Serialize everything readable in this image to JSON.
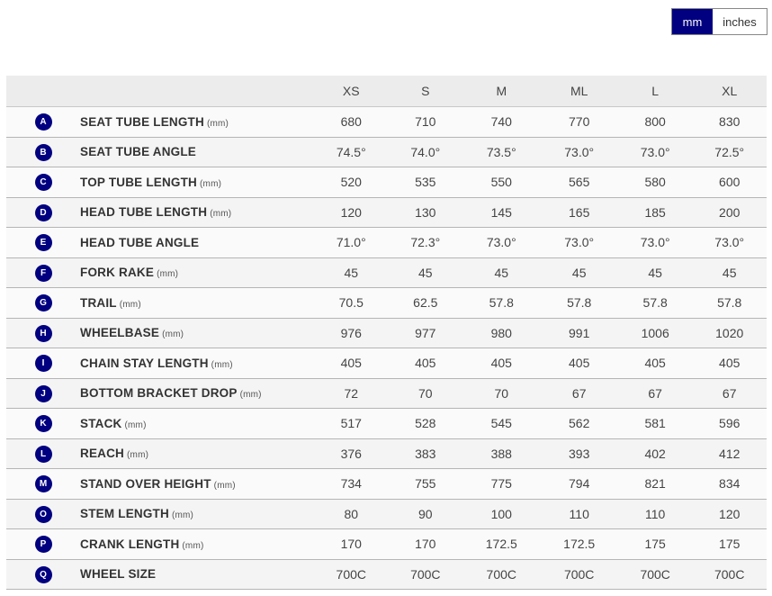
{
  "units_toggle": {
    "mm": "mm",
    "inches": "inches",
    "selected": "mm"
  },
  "accent_color": "#000080",
  "sizes": [
    "XS",
    "S",
    "M",
    "ML",
    "L",
    "XL"
  ],
  "rows": [
    {
      "letter": "A",
      "label": "SEAT TUBE LENGTH",
      "unit": "(mm)",
      "values": [
        "680",
        "710",
        "740",
        "770",
        "800",
        "830"
      ]
    },
    {
      "letter": "B",
      "label": "SEAT TUBE ANGLE",
      "unit": "",
      "values": [
        "74.5°",
        "74.0°",
        "73.5°",
        "73.0°",
        "73.0°",
        "72.5°"
      ]
    },
    {
      "letter": "C",
      "label": "TOP TUBE LENGTH",
      "unit": "(mm)",
      "values": [
        "520",
        "535",
        "550",
        "565",
        "580",
        "600"
      ]
    },
    {
      "letter": "D",
      "label": "HEAD TUBE LENGTH",
      "unit": "(mm)",
      "values": [
        "120",
        "130",
        "145",
        "165",
        "185",
        "200"
      ]
    },
    {
      "letter": "E",
      "label": "HEAD TUBE ANGLE",
      "unit": "",
      "values": [
        "71.0°",
        "72.3°",
        "73.0°",
        "73.0°",
        "73.0°",
        "73.0°"
      ]
    },
    {
      "letter": "F",
      "label": "FORK RAKE",
      "unit": "(mm)",
      "values": [
        "45",
        "45",
        "45",
        "45",
        "45",
        "45"
      ]
    },
    {
      "letter": "G",
      "label": "TRAIL",
      "unit": "(mm)",
      "values": [
        "70.5",
        "62.5",
        "57.8",
        "57.8",
        "57.8",
        "57.8"
      ]
    },
    {
      "letter": "H",
      "label": "WHEELBASE",
      "unit": "(mm)",
      "values": [
        "976",
        "977",
        "980",
        "991",
        "1006",
        "1020"
      ]
    },
    {
      "letter": "I",
      "label": "CHAIN STAY LENGTH",
      "unit": "(mm)",
      "values": [
        "405",
        "405",
        "405",
        "405",
        "405",
        "405"
      ]
    },
    {
      "letter": "J",
      "label": "BOTTOM BRACKET DROP",
      "unit": "(mm)",
      "values": [
        "72",
        "70",
        "70",
        "67",
        "67",
        "67"
      ]
    },
    {
      "letter": "K",
      "label": "STACK",
      "unit": "(mm)",
      "values": [
        "517",
        "528",
        "545",
        "562",
        "581",
        "596"
      ]
    },
    {
      "letter": "L",
      "label": "REACH",
      "unit": "(mm)",
      "values": [
        "376",
        "383",
        "388",
        "393",
        "402",
        "412"
      ]
    },
    {
      "letter": "M",
      "label": "STAND OVER HEIGHT",
      "unit": "(mm)",
      "values": [
        "734",
        "755",
        "775",
        "794",
        "821",
        "834"
      ]
    },
    {
      "letter": "O",
      "label": "STEM LENGTH",
      "unit": "(mm)",
      "values": [
        "80",
        "90",
        "100",
        "110",
        "110",
        "120"
      ]
    },
    {
      "letter": "P",
      "label": "CRANK LENGTH",
      "unit": "(mm)",
      "values": [
        "170",
        "170",
        "172.5",
        "172.5",
        "175",
        "175"
      ]
    },
    {
      "letter": "Q",
      "label": "WHEEL SIZE",
      "unit": "",
      "values": [
        "700C",
        "700C",
        "700C",
        "700C",
        "700C",
        "700C"
      ]
    }
  ]
}
